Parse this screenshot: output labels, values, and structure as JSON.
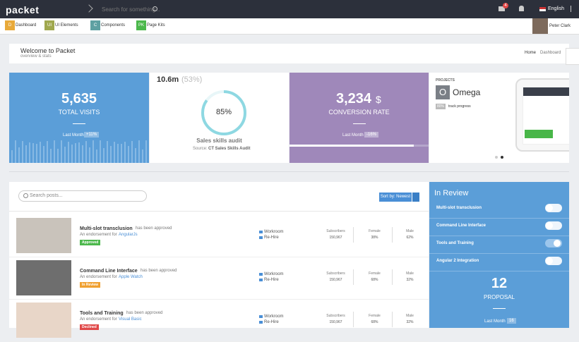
{
  "nav": {
    "logo": "packet",
    "search_placeholder": "Search for something...",
    "mail_badge": "4",
    "language": "English"
  },
  "menu": {
    "items": [
      {
        "badge": "D",
        "label": "Dashboard"
      },
      {
        "badge": "UI",
        "label": "UI Elements"
      },
      {
        "badge": "C",
        "label": "Components"
      },
      {
        "badge": "PK",
        "label": "Page Kits"
      }
    ],
    "user": "Peter Clark"
  },
  "header": {
    "title": "Welcome to Packet",
    "subtitle": "overview & stats",
    "breadcrumb": [
      "Home",
      "Dashboard"
    ]
  },
  "stats": {
    "visits": {
      "value": "5,635",
      "label": "TOTAL VISITS",
      "period": "Last Month",
      "change": "+11%"
    },
    "audit": {
      "value": "10.6m",
      "percent": "(53%)",
      "donut": "85%",
      "title": "Sales skills audit",
      "source_label": "Source:",
      "source": "CT Sales Skills Audit"
    },
    "conversion": {
      "value": "3,234",
      "unit": "$",
      "label": "CONVERSION RATE",
      "period": "Last Month",
      "change": "-16%"
    },
    "projects": {
      "heading": "PROJECTS",
      "avatar": "O",
      "name": "Omega",
      "progress": "80%",
      "progress_label": "track progress"
    }
  },
  "posts": {
    "search_placeholder": "Search posts...",
    "sort": "Sort by: Newest",
    "rows": [
      {
        "title": "Multi-slot transclusion",
        "status_text": "has been approved",
        "endorsement": "An endorsement for",
        "tech": "AngularJs",
        "badge": "Approved",
        "actions": [
          "Workroom",
          "Re-Hire"
        ],
        "stats": [
          {
            "label": "Subscribers",
            "value": "150,967"
          },
          {
            "label": "Female",
            "value": "38%"
          },
          {
            "label": "Male",
            "value": "62%"
          }
        ]
      },
      {
        "title": "Command Line Interface",
        "status_text": "has been approved",
        "endorsement": "An endorsement for",
        "tech": "Apple Watch",
        "badge": "In Review",
        "actions": [
          "Workroom",
          "Re-Hire"
        ],
        "stats": [
          {
            "label": "Subscribers",
            "value": "150,967"
          },
          {
            "label": "Female",
            "value": "68%"
          },
          {
            "label": "Male",
            "value": "32%"
          }
        ]
      },
      {
        "title": "Tools and Training",
        "status_text": "has been approved",
        "endorsement": "An endorsement for",
        "tech": "Visual Basic",
        "badge": "Declined",
        "actions": [
          "Workroom",
          "Re-Hire"
        ],
        "stats": [
          {
            "label": "Subscribers",
            "value": "150,967"
          },
          {
            "label": "Female",
            "value": "68%"
          },
          {
            "label": "Male",
            "value": "32%"
          }
        ]
      }
    ]
  },
  "review": {
    "title": "In Review",
    "items": [
      "Multi-slot transclusion",
      "Command Line Interface",
      "Tools and Training",
      "Angular 2 Integration"
    ],
    "count": "12",
    "count_label": "PROPOSAL",
    "period": "Last Month",
    "period_value": "16"
  }
}
